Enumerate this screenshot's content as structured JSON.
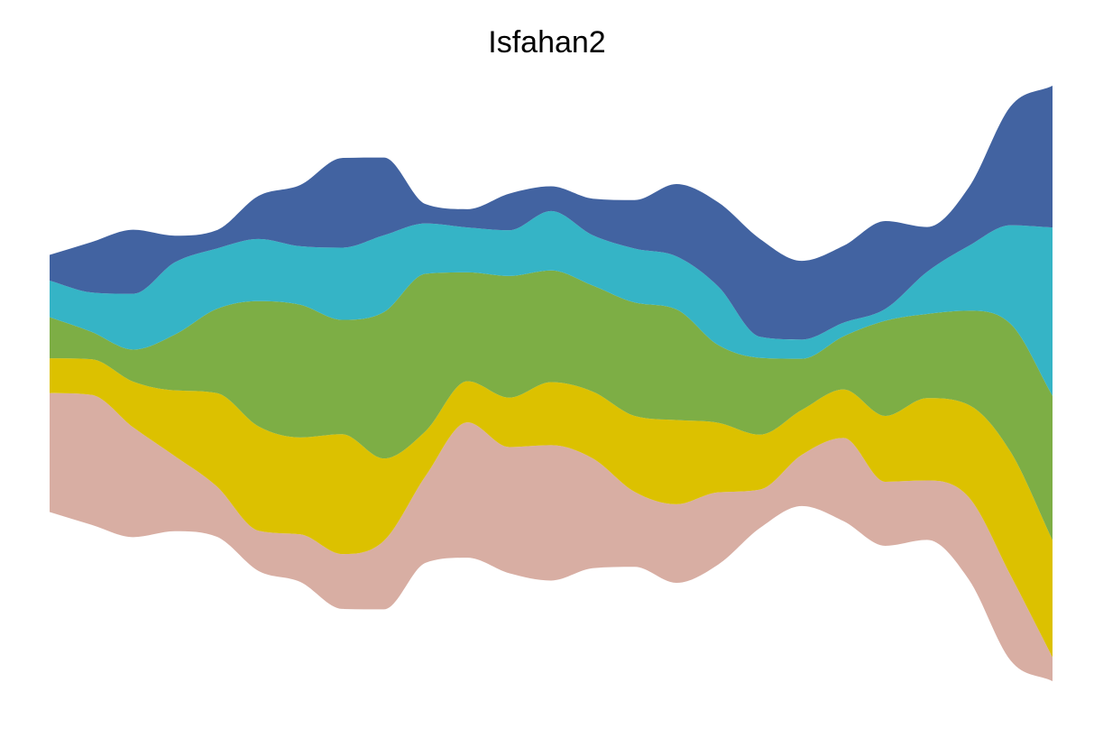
{
  "chart_data": {
    "type": "area",
    "stacked": true,
    "layout": "streamgraph",
    "title": "Isfahan2",
    "xlabel": "",
    "ylabel": "",
    "axes_visible": false,
    "grid": false,
    "legend": "none",
    "x": [
      0,
      1,
      2,
      3,
      4,
      5,
      6,
      7,
      8,
      9,
      10,
      11,
      12,
      13,
      14,
      15,
      16,
      17,
      18,
      19,
      20,
      21,
      22,
      23,
      24
    ],
    "series": [
      {
        "color": "#d8aea3",
        "values": [
          130,
          142,
          120,
          82,
          55,
          44,
          52,
          60,
          75,
          95,
          148,
          138,
          148,
          120,
          82,
          86,
          79,
          42,
          56,
          91,
          70,
          65,
          90,
          93,
          26
        ]
      },
      {
        "color": "#dcc100",
        "values": [
          38,
          39,
          50,
          72,
          102,
          114,
          106,
          131,
          90,
          49,
          45,
          54,
          69,
          73,
          83,
          92,
          76,
          60,
          49,
          53,
          72,
          90,
          101,
          135,
          128
        ]
      },
      {
        "color": "#7dae45",
        "values": [
          45,
          30,
          35,
          61,
          92,
          137,
          145,
          125,
          160,
          172,
          119,
          133,
          122,
          116,
          124,
          121,
          85,
          84,
          56,
          58,
          104,
          92,
          103,
          140,
          158
        ]
      },
      {
        "color": "#35b4c6",
        "values": [
          40,
          43,
          61,
          79,
          66,
          68,
          64,
          79,
          84,
          55,
          49,
          50,
          65,
          55,
          59,
          58,
          64,
          23,
          21,
          15,
          13,
          46,
          71,
          108,
          184
        ]
      },
      {
        "color": "#4263a1",
        "values": [
          28,
          55,
          70,
          29,
          20,
          47,
          67,
          98,
          85,
          21,
          20,
          40,
          27,
          40,
          53,
          79,
          92,
          107,
          86,
          84,
          96,
          49,
          64,
          130,
          155
        ]
      }
    ]
  }
}
